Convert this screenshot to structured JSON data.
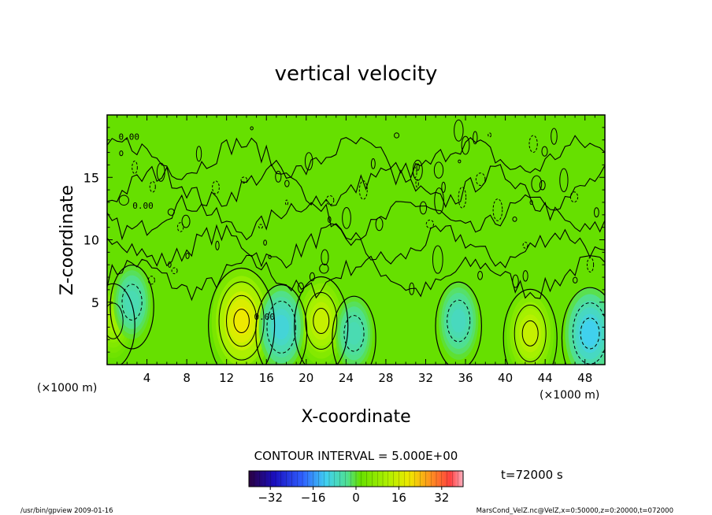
{
  "chart_data": {
    "type": "heatmap",
    "title": "vertical velocity",
    "xlabel": "X-coordinate",
    "ylabel": "Z-coordinate",
    "x_unit_left": "(×1000 m)",
    "x_unit_right": "(×1000 m)",
    "xlim": [
      0,
      50
    ],
    "ylim": [
      0,
      20
    ],
    "x_ticks": [
      4,
      8,
      12,
      16,
      20,
      24,
      28,
      32,
      36,
      40,
      44,
      48
    ],
    "y_ticks": [
      5,
      10,
      15
    ],
    "contour_interval_label": "CONTOUR INTERVAL = 5.000E+00",
    "time_label": "t=72000 s",
    "colorbar": {
      "range": [
        -40,
        40
      ],
      "tick_values": [
        -32,
        -16,
        0,
        16,
        32
      ],
      "tick_labels": [
        "−32",
        "−16",
        "0",
        "16",
        "32"
      ]
    },
    "contour_labels": [
      {
        "x": 2.2,
        "z": 18.0,
        "text": "0.00"
      },
      {
        "x": 3.6,
        "z": 12.5,
        "text": "0.00"
      },
      {
        "x": 15.8,
        "z": 3.6,
        "text": "0.00"
      }
    ],
    "features": [
      {
        "kind": "updraft",
        "x": 13.5,
        "z": 3.5,
        "peak": 15
      },
      {
        "kind": "updraft",
        "x": 21.5,
        "z": 3.5,
        "peak": 10
      },
      {
        "kind": "updraft",
        "x": 42.5,
        "z": 2.5,
        "peak": 10
      },
      {
        "kind": "updraft",
        "x": 0.6,
        "z": 3.5,
        "peak": 6
      },
      {
        "kind": "downdraft",
        "x": 2.5,
        "z": 5.0,
        "peak": -6
      },
      {
        "kind": "downdraft",
        "x": 17.5,
        "z": 3.0,
        "peak": -9
      },
      {
        "kind": "downdraft",
        "x": 24.8,
        "z": 2.5,
        "peak": -6
      },
      {
        "kind": "downdraft",
        "x": 35.3,
        "z": 3.5,
        "peak": -7
      },
      {
        "kind": "downdraft",
        "x": 48.5,
        "z": 2.5,
        "peak": -11
      }
    ]
  },
  "footer": {
    "left": "/usr/bin/gpview   2009-01-16",
    "right": "MarsCond_VelZ.nc@VelZ,x=0:50000,z=0:20000,t=072000"
  },
  "colors": {
    "background_field": "#66e000",
    "frame": "#000000"
  }
}
